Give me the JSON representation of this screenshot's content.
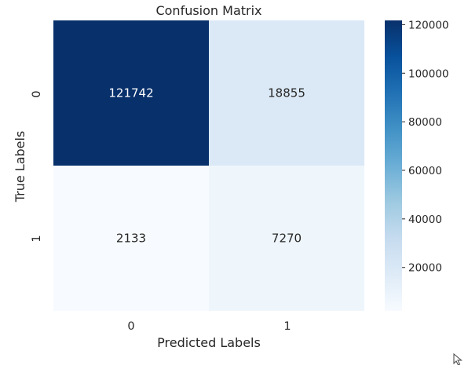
{
  "chart_data": {
    "type": "heatmap",
    "title": "Confusion Matrix",
    "xlabel": "Predicted Labels",
    "ylabel": "True Labels",
    "x_categories": [
      "0",
      "1"
    ],
    "y_categories": [
      "0",
      "1"
    ],
    "values": [
      [
        121742,
        18855
      ],
      [
        2133,
        7270
      ]
    ],
    "cell_labels": [
      [
        "121742",
        "18855"
      ],
      [
        "2133",
        "7270"
      ]
    ],
    "colormap": "Blues",
    "colorbar": {
      "range": [
        2133,
        121742
      ],
      "ticks": [
        20000,
        40000,
        60000,
        80000,
        100000,
        120000
      ],
      "tick_labels": [
        "20000",
        "40000",
        "60000",
        "80000",
        "100000",
        "120000"
      ]
    },
    "grid": false
  },
  "colors": {
    "cmap_stops": [
      "#f7fbff",
      "#deebf7",
      "#c6dbef",
      "#9ecae1",
      "#6baed6",
      "#4292c6",
      "#2171b5",
      "#08519c",
      "#08306b"
    ],
    "text_dark": "#262626",
    "text_light": "#ffffff"
  },
  "cursor": {
    "icon": "mouse-pointer-icon"
  }
}
